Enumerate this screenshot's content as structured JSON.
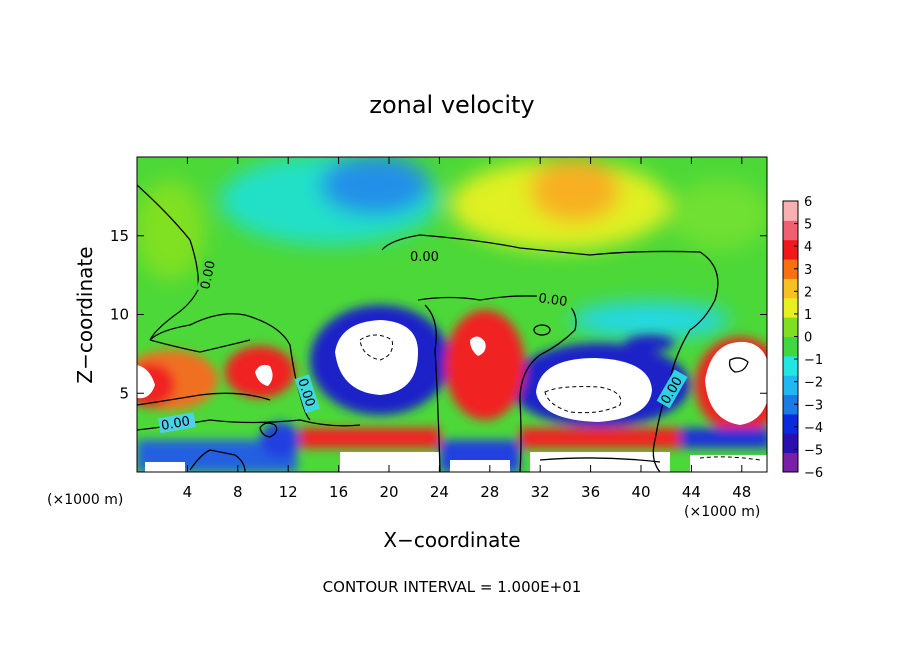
{
  "chart_data": {
    "type": "heatmap",
    "title": "zonal velocity",
    "xlabel": "X−coordinate",
    "ylabel": "Z−coordinate",
    "x_unit_left": "(×1000 m)",
    "x_unit_right": "(×1000 m)",
    "xlim": [
      0,
      50
    ],
    "ylim": [
      0,
      20
    ],
    "x_ticks": [
      4,
      8,
      12,
      16,
      20,
      24,
      28,
      32,
      36,
      40,
      44,
      48
    ],
    "y_ticks": [
      5,
      10,
      15
    ],
    "footer": "CONTOUR INTERVAL = 1.000E+01",
    "colorbar": {
      "ticks": [
        "6",
        "5",
        "4",
        "3",
        "2",
        "1",
        "0",
        "−1",
        "−2",
        "−3",
        "−4",
        "−5",
        "−6"
      ],
      "range": [
        -6,
        6
      ],
      "colors": [
        "#7a1fa8",
        "#2a10b0",
        "#0a2ae0",
        "#1a7ae8",
        "#20b8f0",
        "#20e8e0",
        "#40d840",
        "#80e020",
        "#e8f020",
        "#f8c020",
        "#f87010",
        "#f01818",
        "#f06070",
        "#f8b0b0"
      ]
    },
    "contour_labels": [
      "0.00",
      "0.00",
      "0.00",
      "0.00",
      "0.00",
      "0.00"
    ]
  }
}
